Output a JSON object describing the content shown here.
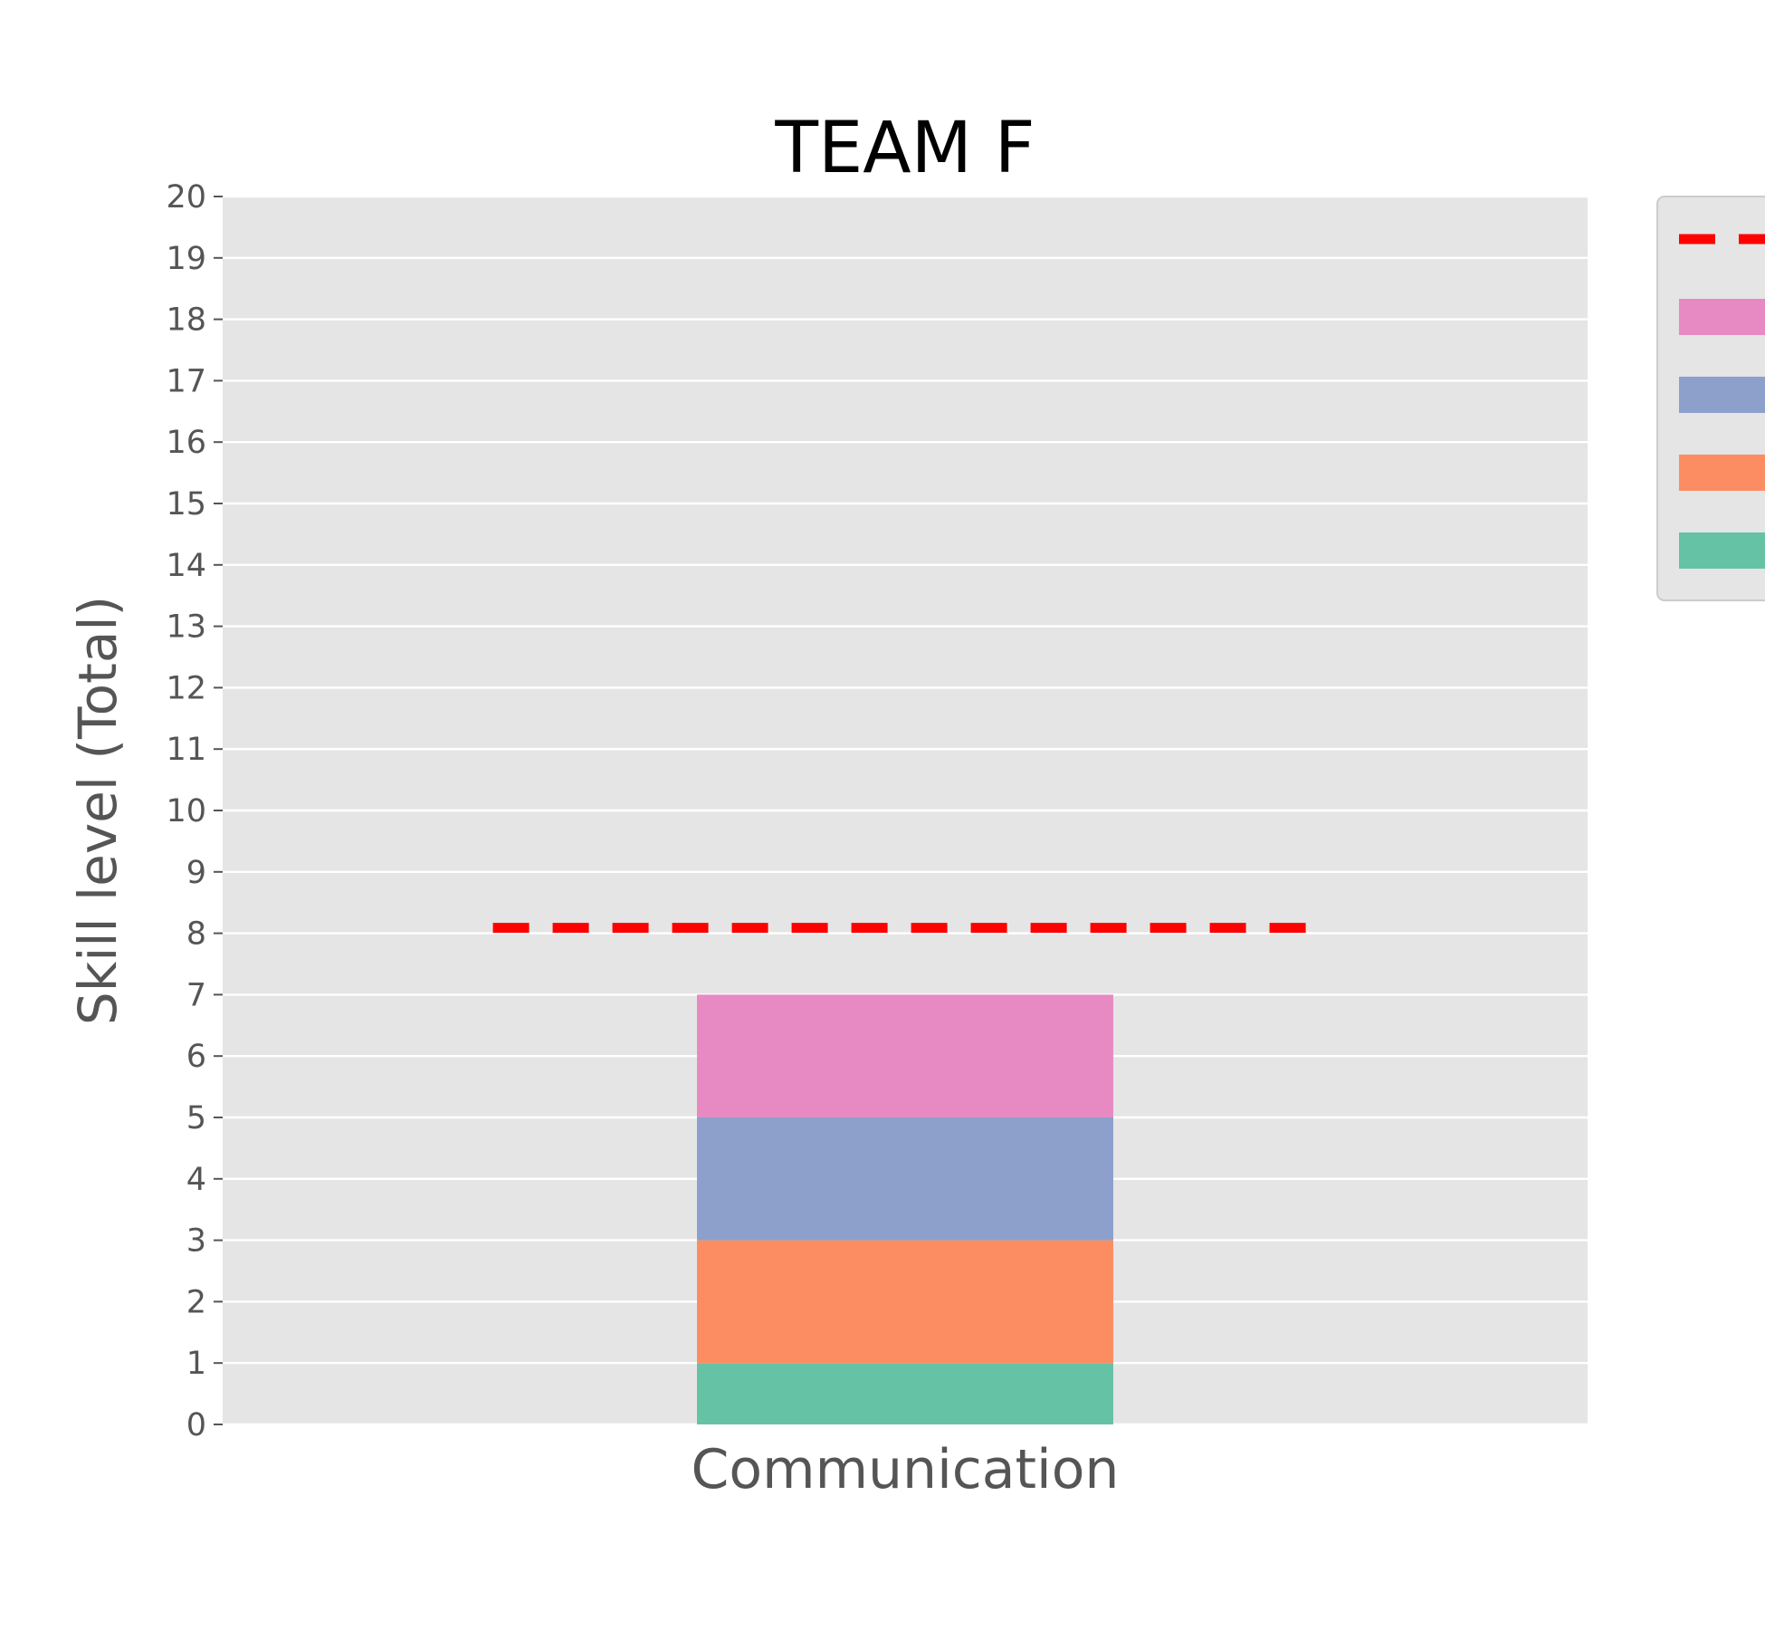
{
  "chart_data": {
    "type": "bar",
    "stacked": true,
    "title": "TEAM F",
    "xlabel": "",
    "ylabel": "Skill level (Total)",
    "categories": [
      "Communication"
    ],
    "ylim": [
      0,
      20
    ],
    "yticks": [
      0,
      1,
      2,
      3,
      4,
      5,
      6,
      7,
      8,
      9,
      10,
      11,
      12,
      13,
      14,
      15,
      16,
      17,
      18,
      19,
      20
    ],
    "grid": true,
    "legend_position": "upper-right-outside",
    "series": [
      {
        "values": [
          1
        ],
        "color": "#66c2a5"
      },
      {
        "values": [
          2
        ],
        "color": "#fc8d62"
      },
      {
        "values": [
          2
        ],
        "color": "#8da0cb"
      },
      {
        "values": [
          2
        ],
        "color": "#e78ac3"
      }
    ],
    "reference_line": {
      "value": 8,
      "color": "#ff0000",
      "style": "dashed"
    },
    "colors": {
      "plot_background": "#e5e5e5",
      "grid": "#ffffff",
      "legend_background": "#e5e5e5",
      "legend_border": "#cccccc"
    }
  }
}
